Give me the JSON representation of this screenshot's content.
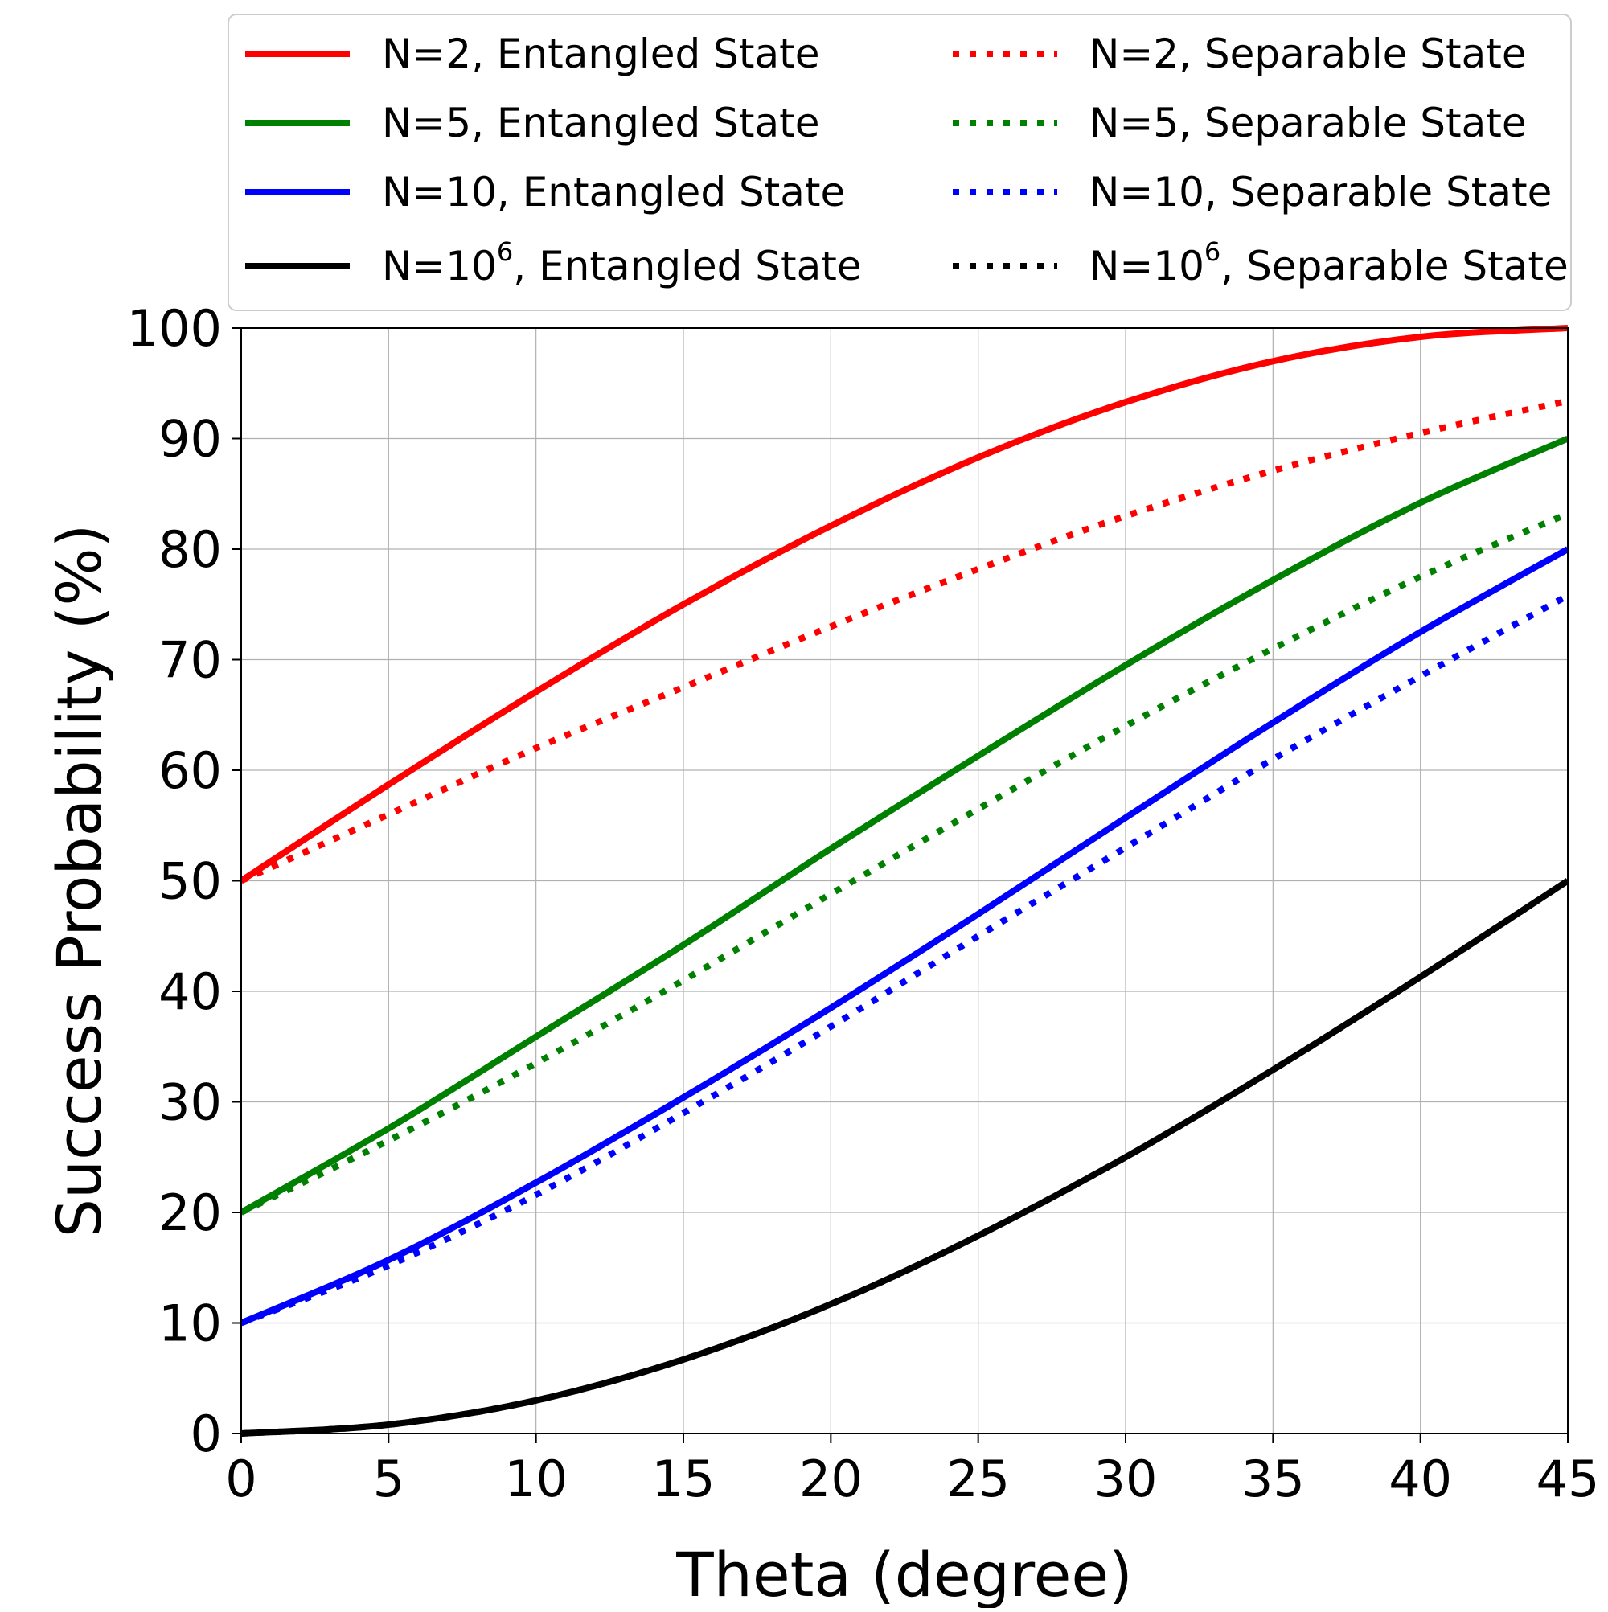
{
  "chart_data": {
    "type": "line",
    "xlabel": "Theta (degree)",
    "ylabel": "Success Probability (%)",
    "xlim": [
      0,
      45
    ],
    "ylim": [
      0,
      100
    ],
    "xticks": [
      0,
      5,
      10,
      15,
      20,
      25,
      30,
      35,
      40,
      45
    ],
    "yticks": [
      0,
      10,
      20,
      30,
      40,
      50,
      60,
      70,
      80,
      90,
      100
    ],
    "grid": true,
    "legend_position": "top",
    "x": [
      0,
      5,
      10,
      15,
      20,
      25,
      30,
      35,
      40,
      45
    ],
    "series": [
      {
        "name": "N=2, Entangled State",
        "color": "#ff0000",
        "style": "solid",
        "values": [
          50.0,
          58.7,
          67.1,
          75.0,
          82.1,
          88.3,
          93.3,
          97.0,
          99.2,
          100.0
        ]
      },
      {
        "name": "N=5, Entangled State",
        "color": "#008000",
        "style": "solid",
        "values": [
          20.0,
          27.6,
          35.9,
          44.2,
          52.9,
          61.3,
          69.5,
          77.2,
          84.2,
          90.0
        ]
      },
      {
        "name": "N=10, Entangled State",
        "color": "#0000ff",
        "style": "solid",
        "values": [
          10.0,
          15.7,
          22.7,
          30.4,
          38.5,
          47.0,
          55.7,
          64.3,
          72.5,
          80.0
        ]
      },
      {
        "name": "N=10^6, Entangled State",
        "color": "#000000",
        "style": "solid",
        "values": [
          0.0,
          0.8,
          3.0,
          6.7,
          11.7,
          17.9,
          25.0,
          32.9,
          41.3,
          50.0
        ]
      },
      {
        "name": "N=2, Separable State",
        "color": "#ff0000",
        "style": "dotted",
        "values": [
          50.0,
          56.0,
          62.0,
          67.5,
          73.0,
          78.2,
          83.0,
          87.1,
          90.5,
          93.4
        ]
      },
      {
        "name": "N=5, Separable State",
        "color": "#008000",
        "style": "dotted",
        "values": [
          20.0,
          26.5,
          33.5,
          41.0,
          48.8,
          56.5,
          64.0,
          71.0,
          77.5,
          83.2
        ]
      },
      {
        "name": "N=10, Separable State",
        "color": "#0000ff",
        "style": "dotted",
        "values": [
          10.0,
          15.2,
          21.6,
          29.0,
          36.8,
          45.0,
          53.0,
          61.0,
          68.5,
          75.8
        ]
      },
      {
        "name": "N=10^6, Separable State",
        "color": "#000000",
        "style": "dotted",
        "values": [
          0.0,
          0.8,
          3.0,
          6.7,
          11.7,
          17.9,
          25.0,
          32.9,
          41.3,
          50.0
        ]
      }
    ],
    "legend": [
      {
        "base": "N=2, Entangled State",
        "sup": "",
        "rest": ""
      },
      {
        "base": "N=2, Separable State",
        "sup": "",
        "rest": ""
      },
      {
        "base": "N=5, Entangled State",
        "sup": "",
        "rest": ""
      },
      {
        "base": "N=5, Separable State",
        "sup": "",
        "rest": ""
      },
      {
        "base": "N=10, Entangled State",
        "sup": "",
        "rest": ""
      },
      {
        "base": "N=10, Separable State",
        "sup": "",
        "rest": ""
      },
      {
        "base": "N=10",
        "sup": "6",
        "rest": ", Entangled State"
      },
      {
        "base": "N=10",
        "sup": "6",
        "rest": ", Separable State"
      }
    ]
  }
}
